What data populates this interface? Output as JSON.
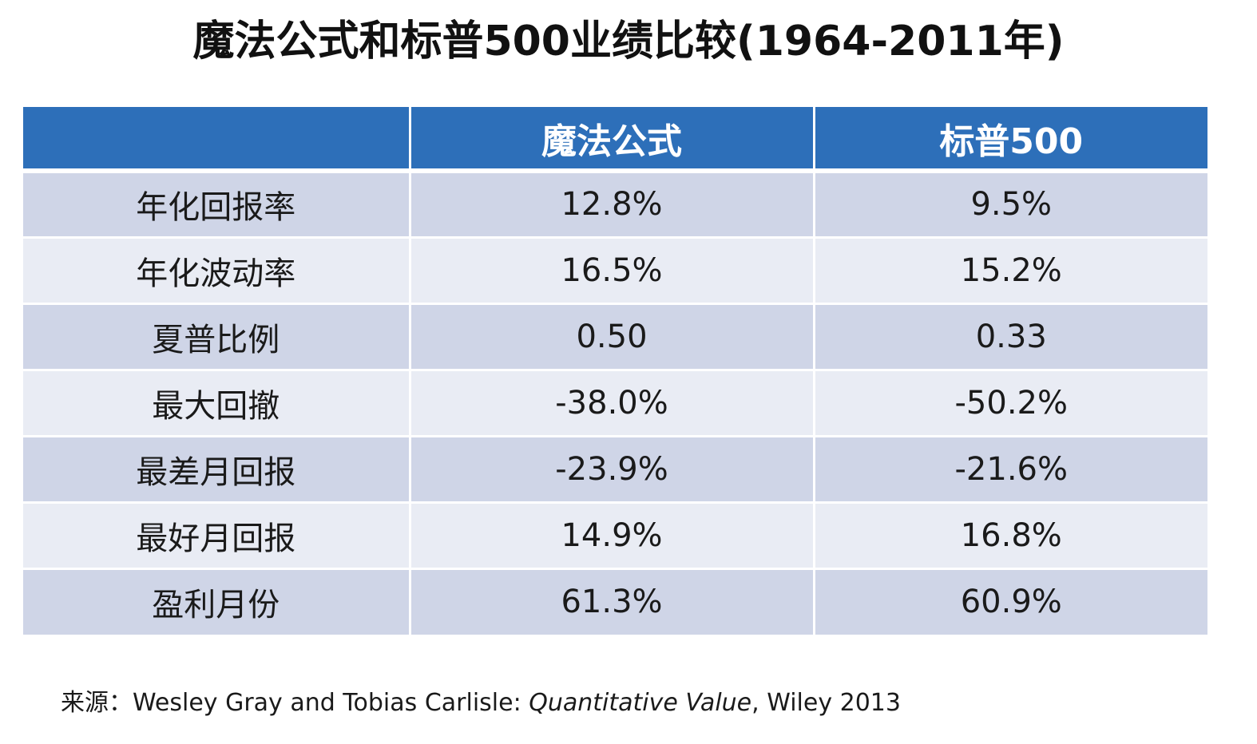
{
  "chart_data": {
    "type": "table",
    "title": "魔法公式和标普500业绩比较(1964-2011年)",
    "columns": [
      "",
      "魔法公式",
      "标普500"
    ],
    "rows": [
      {
        "label": "年化回报率",
        "values": [
          "12.8%",
          "9.5%"
        ]
      },
      {
        "label": "年化波动率",
        "values": [
          "16.5%",
          "15.2%"
        ]
      },
      {
        "label": "夏普比例",
        "values": [
          "0.50",
          "0.33"
        ]
      },
      {
        "label": "最大回撤",
        "values": [
          "-38.0%",
          "-50.2%"
        ]
      },
      {
        "label": "最差月回报",
        "values": [
          "-23.9%",
          "-21.6%"
        ]
      },
      {
        "label": "最好月回报",
        "values": [
          "14.9%",
          "16.8%"
        ]
      },
      {
        "label": "盈利月份",
        "values": [
          "61.3%",
          "60.9%"
        ]
      }
    ],
    "source": {
      "prefix": "来源：Wesley Gray and Tobias Carlisle: ",
      "book": "Quantitative Value",
      "suffix": ", Wiley 2013"
    }
  },
  "colors": {
    "header_bg": "#2d6fb9",
    "header_text": "#ffffff",
    "row_odd_bg": "#cfd5e7",
    "row_even_bg": "#e9ecf4"
  }
}
